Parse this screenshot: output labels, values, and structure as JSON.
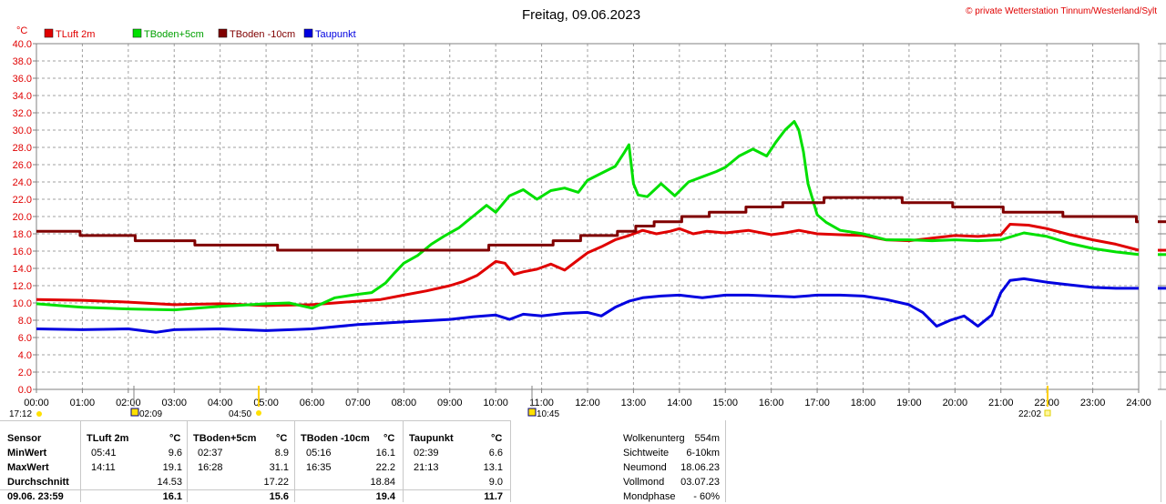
{
  "header": {
    "title": "Freitag, 09.06.2023",
    "copyright": "© private Wetterstation Tinnum/Westerland/Sylt",
    "unit": "°C"
  },
  "chart_data": {
    "type": "line",
    "ylim": [
      0,
      40
    ],
    "yticks": [
      "0.0",
      "2.0",
      "4.0",
      "6.0",
      "8.0",
      "10.0",
      "12.0",
      "14.0",
      "16.0",
      "18.0",
      "20.0",
      "22.0",
      "24.0",
      "26.0",
      "28.0",
      "30.0",
      "32.0",
      "34.0",
      "36.0",
      "38.0",
      "40.0"
    ],
    "xlim": [
      0,
      24
    ],
    "xticks": [
      "00:00",
      "01:00",
      "02:00",
      "03:00",
      "04:00",
      "05:00",
      "06:00",
      "07:00",
      "08:00",
      "09:00",
      "10:00",
      "11:00",
      "12:00",
      "13:00",
      "14:00",
      "15:00",
      "16:00",
      "17:00",
      "18:00",
      "19:00",
      "20:00",
      "21:00",
      "22:00",
      "23:00",
      "24:00"
    ],
    "grid": true,
    "legend_position": "top-left",
    "series": [
      {
        "name": "TLuft 2m",
        "color": "#e00000",
        "x": [
          0,
          1,
          2,
          3,
          4,
          5,
          6,
          6.5,
          7,
          7.5,
          8,
          8.5,
          9,
          9.3,
          9.6,
          9.8,
          10,
          10.2,
          10.4,
          10.6,
          10.9,
          11.2,
          11.5,
          11.8,
          12,
          12.3,
          12.6,
          12.9,
          13.2,
          13.5,
          13.8,
          14,
          14.3,
          14.6,
          15,
          15.5,
          16,
          16.3,
          16.6,
          17,
          17.5,
          18,
          18.5,
          19,
          19.5,
          20,
          20.5,
          21,
          21.2,
          21.6,
          22,
          22.5,
          23,
          23.5,
          24
        ],
        "y": [
          10.4,
          10.3,
          10.1,
          9.8,
          9.9,
          9.7,
          9.8,
          10.0,
          10.2,
          10.4,
          10.9,
          11.4,
          12.0,
          12.5,
          13.2,
          14.0,
          14.8,
          14.6,
          13.3,
          13.6,
          13.9,
          14.5,
          13.8,
          15.0,
          15.8,
          16.5,
          17.3,
          17.8,
          18.4,
          18.0,
          18.3,
          18.6,
          18.0,
          18.3,
          18.1,
          18.4,
          17.9,
          18.1,
          18.4,
          18.0,
          17.9,
          17.8,
          17.3,
          17.2,
          17.5,
          17.8,
          17.7,
          17.9,
          19.1,
          19.0,
          18.6,
          17.9,
          17.3,
          16.8,
          16.1
        ]
      },
      {
        "name": "TBoden+5cm",
        "color": "#00e000",
        "x": [
          0,
          0.5,
          1,
          2,
          3,
          4,
          5,
          5.5,
          6,
          6.5,
          7,
          7.3,
          7.6,
          7.8,
          8,
          8.3,
          8.6,
          8.9,
          9.2,
          9.5,
          9.8,
          10,
          10.3,
          10.6,
          10.9,
          11.2,
          11.5,
          11.8,
          12,
          12.3,
          12.6,
          12.8,
          12.9,
          13,
          13.1,
          13.3,
          13.6,
          13.9,
          14.2,
          14.5,
          14.8,
          15,
          15.3,
          15.6,
          15.9,
          16.1,
          16.3,
          16.5,
          16.6,
          16.7,
          16.8,
          17,
          17.2,
          17.5,
          18,
          18.5,
          19,
          19.5,
          20,
          20.5,
          21,
          21.5,
          22,
          22.5,
          23,
          23.5,
          24
        ],
        "y": [
          9.9,
          9.7,
          9.5,
          9.3,
          9.2,
          9.6,
          9.9,
          10.0,
          9.4,
          10.6,
          11.0,
          11.2,
          12.3,
          13.5,
          14.6,
          15.5,
          16.8,
          17.8,
          18.7,
          20.0,
          21.3,
          20.5,
          22.4,
          23.1,
          22.0,
          23.0,
          23.3,
          22.8,
          24.2,
          25.0,
          25.8,
          27.4,
          28.3,
          23.8,
          22.5,
          22.3,
          23.8,
          22.4,
          24.0,
          24.6,
          25.2,
          25.7,
          27.0,
          27.8,
          27.0,
          28.6,
          30.0,
          31.0,
          30.0,
          27.5,
          23.8,
          20.2,
          19.3,
          18.4,
          18.0,
          17.3,
          17.3,
          17.2,
          17.3,
          17.2,
          17.3,
          18.1,
          17.7,
          16.9,
          16.3,
          15.9,
          15.6
        ]
      },
      {
        "name": "TBoden -10cm",
        "color": "#800000",
        "x": [
          0,
          0.95,
          0.95,
          2.15,
          2.15,
          3.45,
          3.45,
          5.25,
          5.25,
          9.85,
          9.85,
          11.25,
          11.25,
          11.85,
          11.85,
          12.65,
          12.65,
          13.05,
          13.05,
          13.45,
          13.45,
          14.05,
          14.05,
          14.65,
          14.65,
          15.45,
          15.45,
          16.25,
          16.25,
          17.15,
          17.15,
          18.85,
          18.85,
          19.95,
          19.95,
          21.05,
          21.05,
          22.35,
          22.35,
          22.85,
          22.85,
          23.95,
          23.95,
          24
        ],
        "y": [
          18.3,
          18.3,
          17.8,
          17.8,
          17.2,
          17.2,
          16.7,
          16.7,
          16.1,
          16.1,
          16.7,
          16.7,
          17.2,
          17.2,
          17.8,
          17.8,
          18.3,
          18.3,
          18.9,
          18.9,
          19.4,
          19.4,
          20.0,
          20.0,
          20.5,
          20.5,
          21.1,
          21.1,
          21.6,
          21.6,
          22.2,
          22.2,
          21.6,
          21.6,
          21.1,
          21.1,
          20.5,
          20.5,
          20.0,
          20.0,
          20.0,
          20.0,
          19.4,
          19.4
        ]
      },
      {
        "name": "Taupunkt",
        "color": "#0000e0",
        "x": [
          0,
          1,
          2,
          2.6,
          3,
          4,
          5,
          6,
          7,
          8,
          9,
          9.5,
          10,
          10.3,
          10.6,
          11,
          11.5,
          12,
          12.3,
          12.6,
          12.9,
          13.2,
          13.6,
          14,
          14.5,
          15,
          15.5,
          16,
          16.5,
          17,
          17.5,
          18,
          18.5,
          19,
          19.3,
          19.6,
          19.9,
          20.2,
          20.5,
          20.8,
          21,
          21.2,
          21.5,
          22,
          22.5,
          23,
          23.5,
          24
        ],
        "y": [
          7.0,
          6.9,
          7.0,
          6.6,
          6.9,
          7.0,
          6.8,
          7.0,
          7.5,
          7.8,
          8.1,
          8.4,
          8.6,
          8.1,
          8.7,
          8.5,
          8.8,
          8.9,
          8.5,
          9.5,
          10.2,
          10.6,
          10.8,
          10.9,
          10.6,
          10.9,
          10.9,
          10.8,
          10.7,
          10.9,
          10.9,
          10.8,
          10.4,
          9.8,
          8.9,
          7.3,
          8.0,
          8.5,
          7.3,
          8.6,
          11.2,
          12.6,
          12.8,
          12.4,
          12.1,
          11.8,
          11.7,
          11.7
        ]
      }
    ]
  },
  "events": {
    "moon_left": "17:12",
    "moon_left2": "02:09",
    "sunrise": "04:50",
    "moon_mid": "10:45",
    "sunset": "22:02"
  },
  "table": {
    "headers": {
      "sensor": "Sensor",
      "s1": "TLuft 2m",
      "s2": "TBoden+5cm",
      "s3": "TBoden -10cm",
      "s4": "Taupunkt",
      "unit": "°C"
    },
    "rows": [
      {
        "label": "MinWert",
        "c": [
          [
            "05:41",
            "9.6"
          ],
          [
            "02:37",
            "8.9"
          ],
          [
            "05:16",
            "16.1"
          ],
          [
            "02:39",
            "6.6"
          ]
        ]
      },
      {
        "label": "MaxWert",
        "c": [
          [
            "14:11",
            "19.1"
          ],
          [
            "16:28",
            "31.1"
          ],
          [
            "16:35",
            "22.2"
          ],
          [
            "21:13",
            "13.1"
          ]
        ]
      },
      {
        "label": "Durchschnitt",
        "c": [
          [
            "",
            "14.53"
          ],
          [
            "",
            "17.22"
          ],
          [
            "",
            "18.84"
          ],
          [
            "",
            "9.0"
          ]
        ]
      },
      {
        "label": "09.06. 23:59",
        "c": [
          [
            "",
            "16.1"
          ],
          [
            "",
            "15.6"
          ],
          [
            "",
            "19.4"
          ],
          [
            "",
            "11.7"
          ]
        ]
      }
    ]
  },
  "info": [
    {
      "label": "Wolkenunterg",
      "value": "554m"
    },
    {
      "label": "Sichtweite",
      "value": "6-10km"
    },
    {
      "label": "Neumond",
      "value": "18.06.23"
    },
    {
      "label": "Vollmond",
      "value": "03.07.23"
    },
    {
      "label": "Mondphase",
      "value": "- 60%"
    }
  ]
}
